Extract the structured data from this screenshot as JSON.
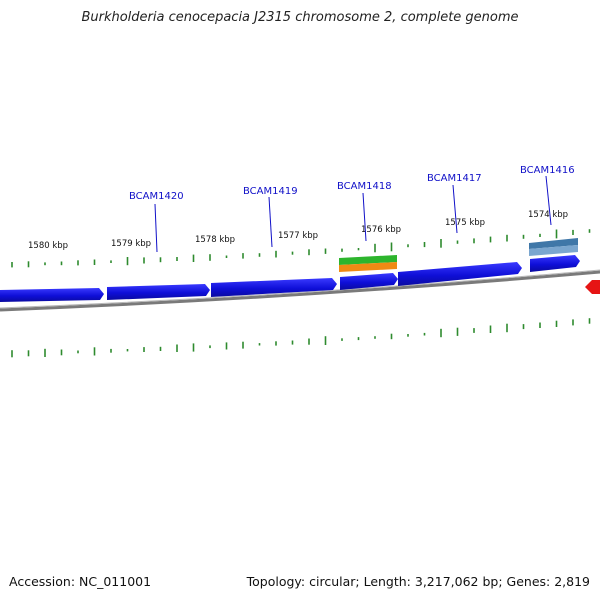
{
  "title": "Burkholderia cenocepacia J2315 chromosome 2, complete genome",
  "footer": {
    "accession": "Accession: NC_011001",
    "stats": "Topology: circular; Length: 3,217,062 bp; Genes: 2,819"
  },
  "ticks": [
    {
      "label": "1580 kbp"
    },
    {
      "label": "1579 kbp"
    },
    {
      "label": "1578 kbp"
    },
    {
      "label": "1577 kbp"
    },
    {
      "label": "1576 kbp"
    },
    {
      "label": "1575 kbp"
    },
    {
      "label": "1574 kbp"
    }
  ],
  "genes": [
    {
      "label": "BCAM1420"
    },
    {
      "label": "BCAM1419"
    },
    {
      "label": "BCAM1418"
    },
    {
      "label": "BCAM1417"
    },
    {
      "label": "BCAM1416"
    }
  ],
  "colors": {
    "cds": "#1414e6",
    "gene_green": "#2db52d",
    "gene_orange": "#f08a14",
    "gene_steel": "#3f77a8",
    "reverse_cds": "#e61414",
    "backbone": "#808080",
    "gc_tick": "#2e8b2e",
    "label": "#1010c8"
  }
}
